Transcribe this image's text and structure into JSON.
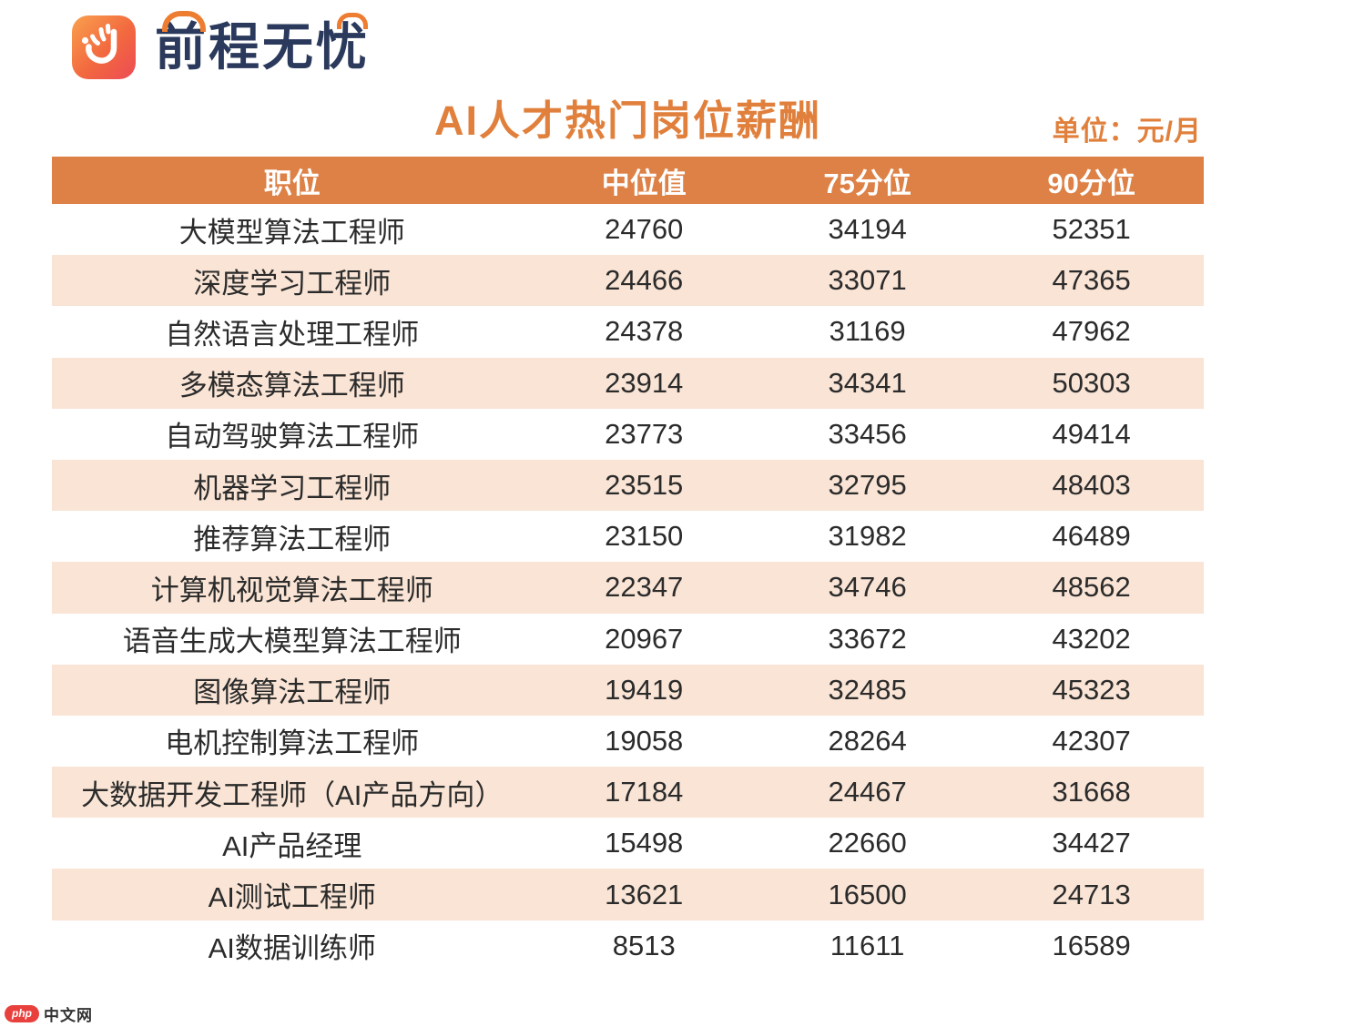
{
  "logo": {
    "icon": "51job-hand-icon",
    "text": "前程无忧"
  },
  "title": "AI人才热门岗位薪酬",
  "unit_label": "单位：元/月",
  "watermark": {
    "badge": "php",
    "text": "中文网"
  },
  "chart_data": {
    "type": "table",
    "title": "AI人才热门岗位薪酬",
    "unit": "元/月",
    "columns": [
      "职位",
      "中位值",
      "75分位",
      "90分位"
    ],
    "rows": [
      [
        "大模型算法工程师",
        24760,
        34194,
        52351
      ],
      [
        "深度学习工程师",
        24466,
        33071,
        47365
      ],
      [
        "自然语言处理工程师",
        24378,
        31169,
        47962
      ],
      [
        "多模态算法工程师",
        23914,
        34341,
        50303
      ],
      [
        "自动驾驶算法工程师",
        23773,
        33456,
        49414
      ],
      [
        "机器学习工程师",
        23515,
        32795,
        48403
      ],
      [
        "推荐算法工程师",
        23150,
        31982,
        46489
      ],
      [
        "计算机视觉算法工程师",
        22347,
        34746,
        48562
      ],
      [
        "语音生成大模型算法工程师",
        20967,
        33672,
        43202
      ],
      [
        "图像算法工程师",
        19419,
        32485,
        45323
      ],
      [
        "电机控制算法工程师",
        19058,
        28264,
        42307
      ],
      [
        "大数据开发工程师（AI产品方向）",
        17184,
        24467,
        31668
      ],
      [
        "AI产品经理",
        15498,
        22660,
        34427
      ],
      [
        "AI测试工程师",
        13621,
        16500,
        24713
      ],
      [
        "AI数据训练师",
        8513,
        11611,
        16589
      ]
    ],
    "layout": {
      "stripe": "even rows shaded",
      "alignment": "all cells centered",
      "grid": false
    }
  },
  "colors": {
    "header_bg": "#DD8146",
    "stripe_bg": "#F9E4D5",
    "title_orange": "#E0803C",
    "accent_orange": "#ED7D31",
    "text_dark": "#2B2B2B",
    "logo_navy": "#2B3A5C",
    "badge_red": "#E8403D"
  }
}
